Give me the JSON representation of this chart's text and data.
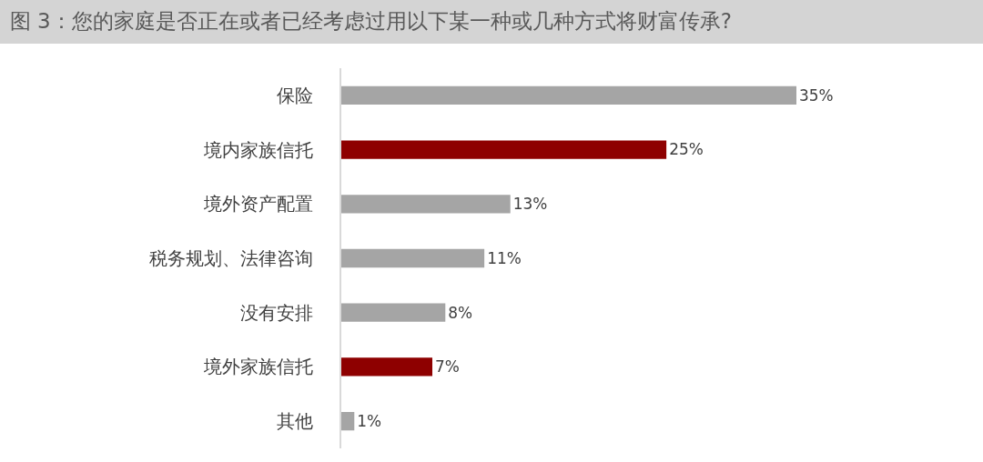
{
  "chart_data": {
    "type": "bar",
    "orientation": "horizontal",
    "title": "图 3：您的家庭是否正在或者已经考虑过用以下某一种或几种方式将财富传承?",
    "categories": [
      "保险",
      "境内家族信托",
      "境外资产配置",
      "税务规划、法律咨询",
      "没有安排",
      "境外家族信托",
      "其他"
    ],
    "values": [
      35,
      25,
      13,
      11,
      8,
      7,
      1
    ],
    "value_labels": [
      "35%",
      "25%",
      "13%",
      "11%",
      "8%",
      "7%",
      "1%"
    ],
    "colors": [
      "#a5a5a5",
      "#8e0000",
      "#a5a5a5",
      "#a5a5a5",
      "#a5a5a5",
      "#8e0000",
      "#a5a5a5"
    ]
  }
}
